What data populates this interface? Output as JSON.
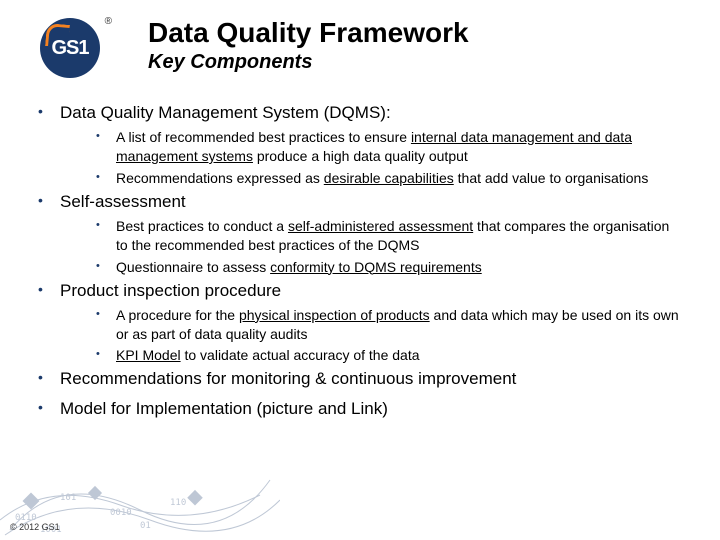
{
  "logo": {
    "text": "GS1",
    "registered": "®"
  },
  "title": "Data Quality Framework",
  "subtitle": "Key Components",
  "colors": {
    "brand_navy": "#1b3a6b",
    "brand_orange": "#f58220",
    "text": "#000000",
    "background": "#ffffff"
  },
  "typography": {
    "title_fontsize": 28,
    "subtitle_fontsize": 20,
    "top_item_fontsize": 17,
    "sub_item_fontsize": 14
  },
  "items": [
    {
      "label": "Data Quality Management System (DQMS):",
      "subs": [
        {
          "pre": "A list of recommended best practices to ensure ",
          "u1": "internal data management and data management systems",
          "post": " produce a high data quality output"
        },
        {
          "pre": "Recommendations expressed as ",
          "u1": "desirable capabilities",
          "post": " that add value to organisations"
        }
      ]
    },
    {
      "label": "Self-assessment",
      "subs": [
        {
          "pre": "Best practices to conduct a ",
          "u1": "self-administered assessment",
          "post": " that compares the organisation to the recommended best practices of the DQMS"
        },
        {
          "pre": "Questionnaire to assess ",
          "u1": "conformity to DQMS requirements",
          "post": ""
        }
      ]
    },
    {
      "label": "Product inspection procedure",
      "subs": [
        {
          "pre": "A procedure for the ",
          "u1": "physical inspection of products",
          "post": " and data which may be used on its own or as part of data quality audits"
        },
        {
          "pre": "",
          "u1": "KPI Model",
          "post": " to validate actual accuracy of the data"
        }
      ]
    },
    {
      "label": "Recommendations for monitoring & continuous improvement",
      "subs": []
    },
    {
      "label": "Model for Implementation (picture and Link)",
      "subs": []
    }
  ],
  "footer": "© 2012 GS1"
}
